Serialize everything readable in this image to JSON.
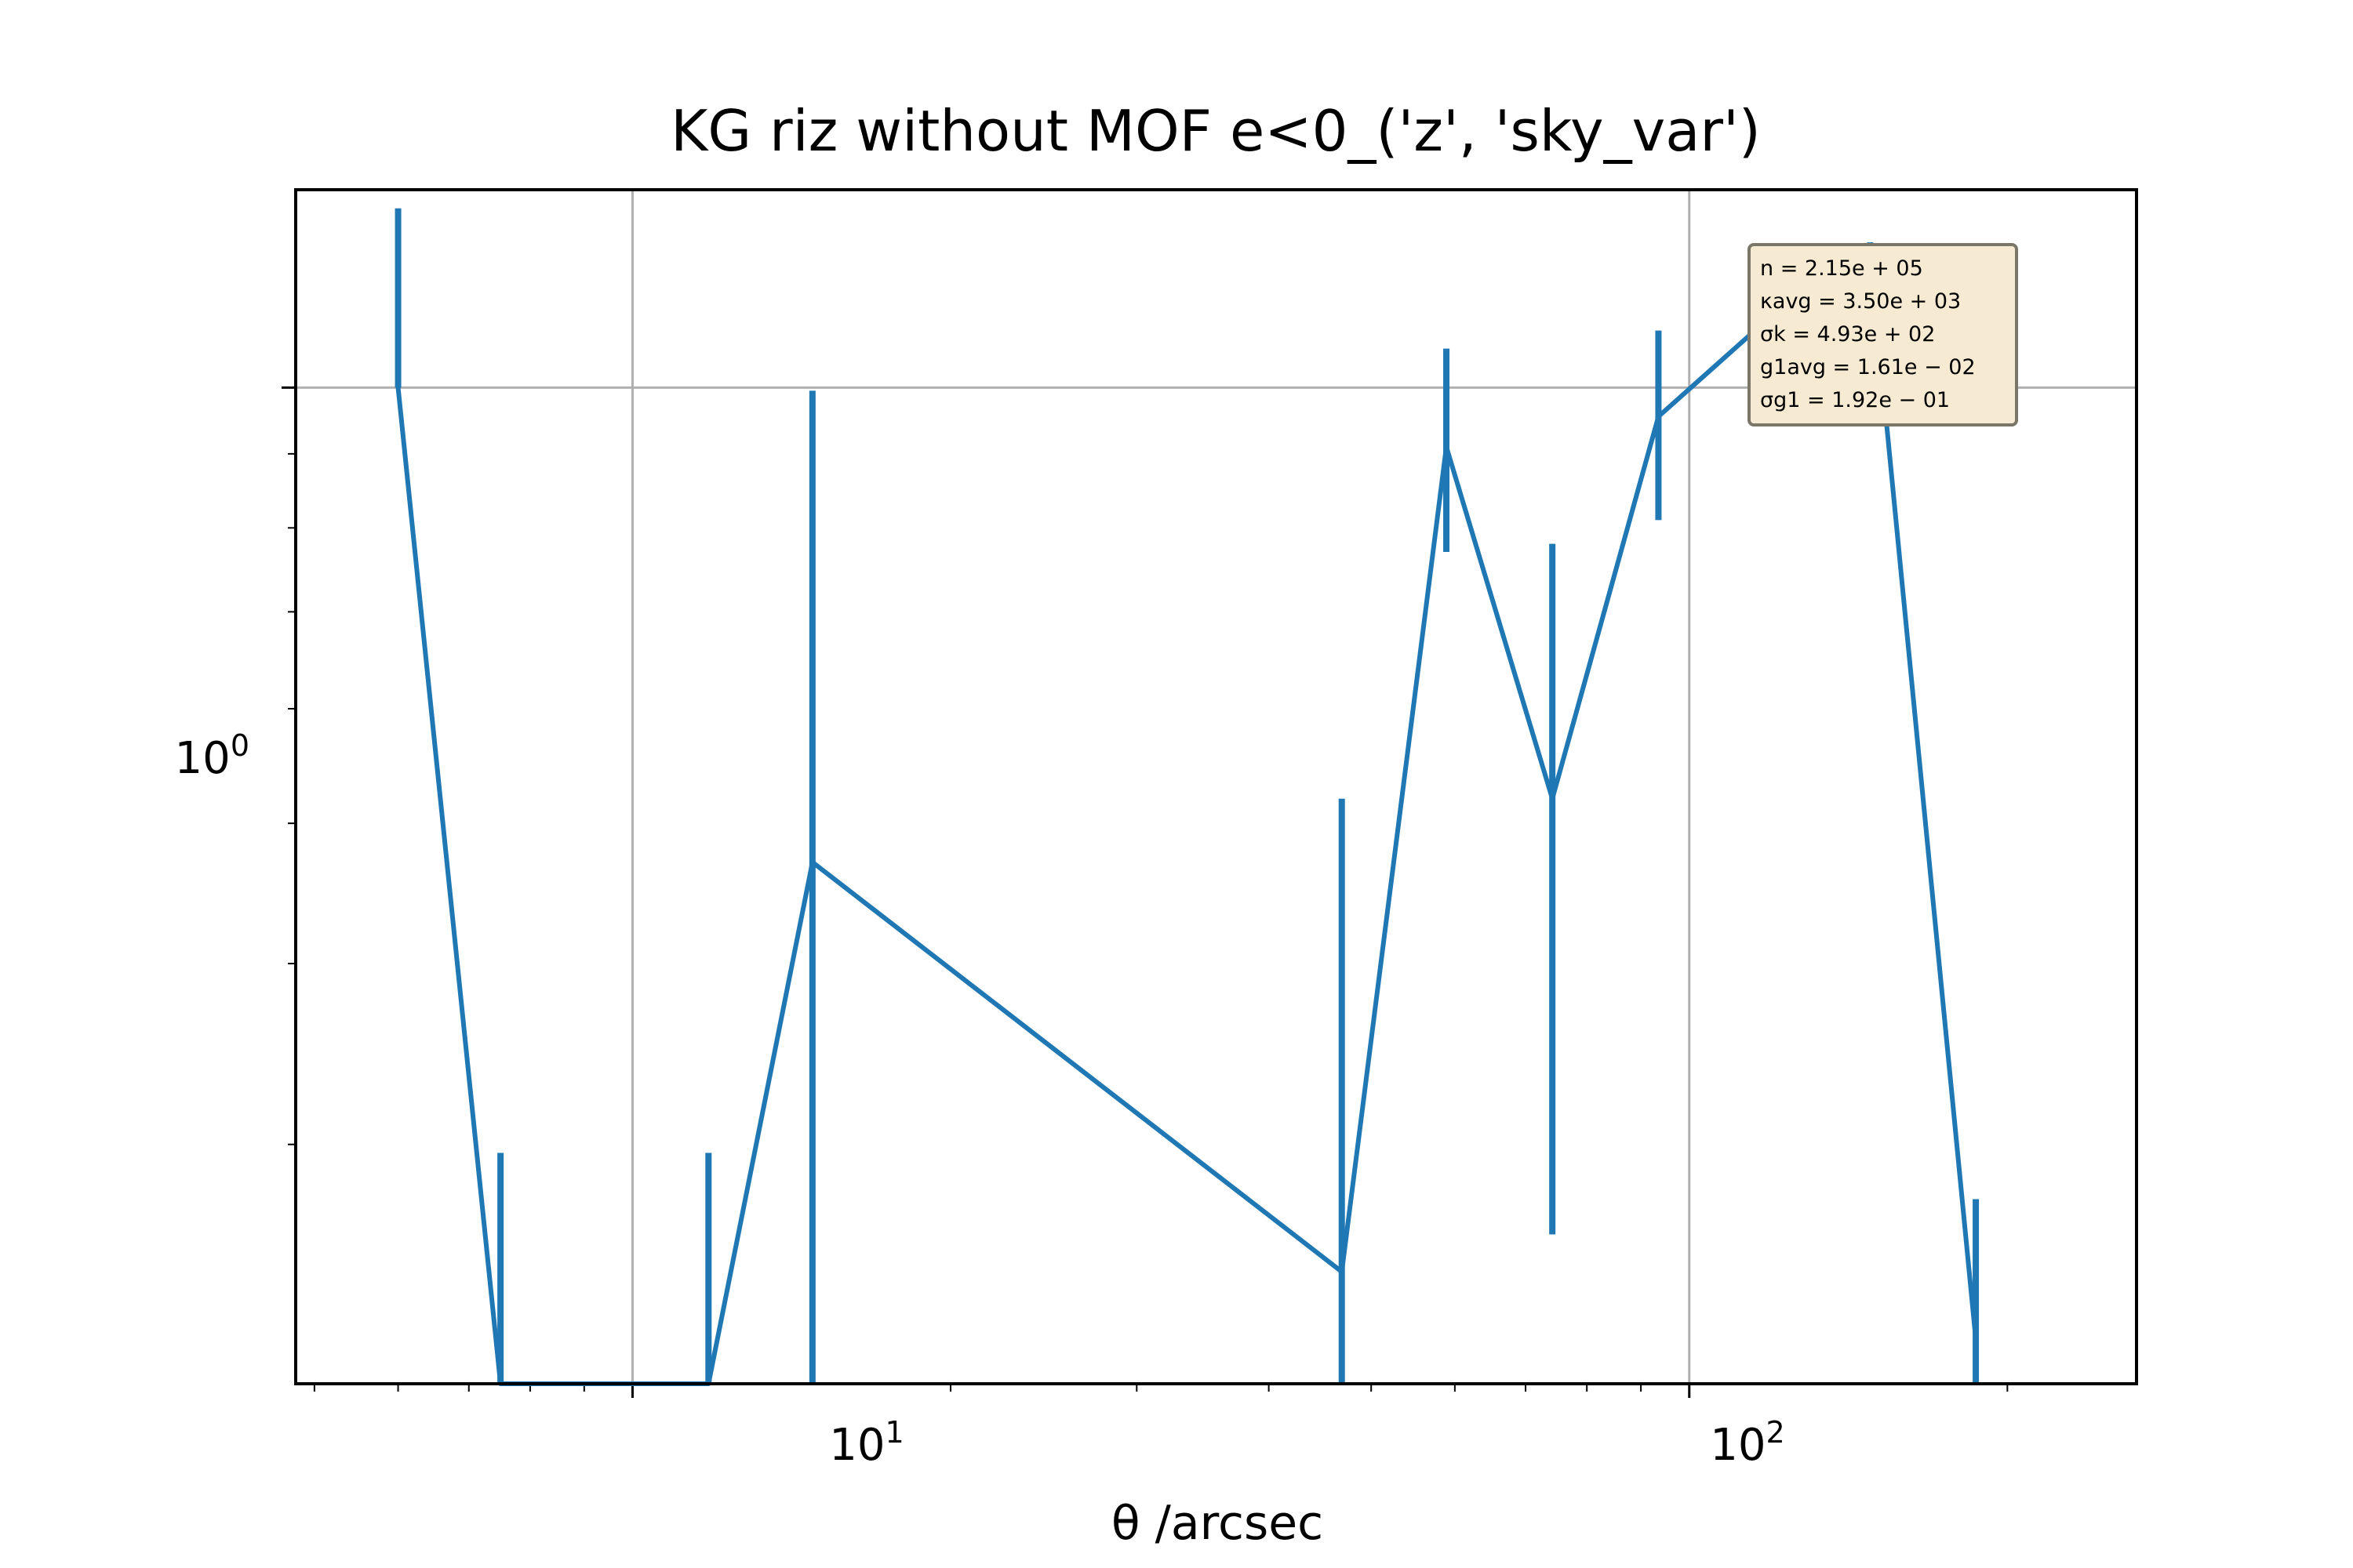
{
  "chart_data": {
    "type": "line",
    "title": "KG riz without MOF e<0_('z', 'sky_var')",
    "xlabel": "θ /arcsec",
    "ylabel": "",
    "x_scale": "log",
    "y_scale": "log",
    "xlim": [
      4.8,
      265
    ],
    "ylim": [
      0.205,
      1.37
    ],
    "grid": true,
    "x_tick_labels": [
      "10^1",
      "10^2"
    ],
    "y_tick_labels": [
      "10^0"
    ],
    "series": [
      {
        "color": "#1f77b4",
        "points": [
          {
            "x": 6.0,
            "y": 1.0,
            "err_low": 1.0,
            "err_high": 1.33
          },
          {
            "x": 7.5,
            "y": 0.0,
            "err_low": 0.0,
            "err_high": 0.296
          },
          {
            "x": 11.8,
            "y": 0.0,
            "err_low": 0.0,
            "err_high": 0.296
          },
          {
            "x": 14.8,
            "y": 0.47,
            "err_low": 0.0,
            "err_high": 0.995
          },
          {
            "x": 46.9,
            "y": 0.245,
            "err_low": 0.0,
            "err_high": 0.52
          },
          {
            "x": 58.9,
            "y": 0.91,
            "err_low": 0.77,
            "err_high": 1.064
          },
          {
            "x": 74.2,
            "y": 0.52,
            "err_low": 0.26,
            "err_high": 0.78
          },
          {
            "x": 93.5,
            "y": 0.955,
            "err_low": 0.81,
            "err_high": 1.095
          },
          {
            "x": 117.8,
            "y": 1.11,
            "err_low": 1.055,
            "err_high": 1.2
          },
          {
            "x": 148.3,
            "y": 1.235,
            "err_low": 1.19,
            "err_high": 1.26
          },
          {
            "x": 186.7,
            "y": 0.22,
            "err_low": 0.0,
            "err_high": 0.275
          }
        ]
      }
    ],
    "stats_box": {
      "lines": [
        "n = 2.15e + 05",
        "κavg = 3.50e + 03",
        "σk = 4.93e + 02",
        "g1avg = 1.61e − 02",
        "σg1 = 1.92e − 01"
      ],
      "background": "#f7ead2",
      "border": "#7b7768"
    }
  }
}
